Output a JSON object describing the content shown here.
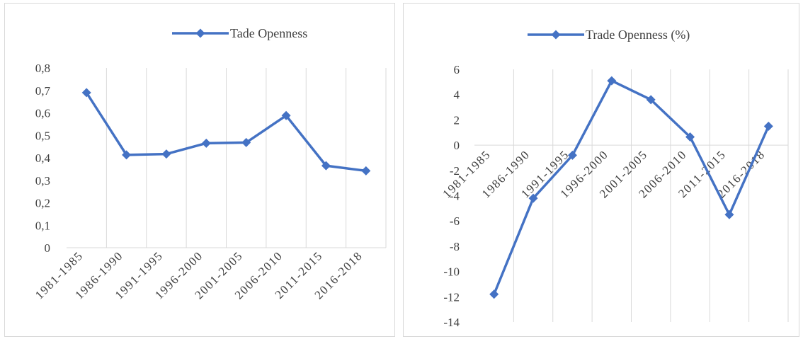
{
  "colors": {
    "series": "#4472c4",
    "grid": "#d9d9d9",
    "text": "#404040"
  },
  "chart_data": [
    {
      "type": "line",
      "categories": [
        "1981-1985",
        "1986-1990",
        "1991-1995",
        "1996-2000",
        "2001-2005",
        "2006-2010",
        "2011-2015",
        "2016-2018"
      ],
      "series": [
        {
          "name": "Tade Openness",
          "values": [
            0.69,
            0.413,
            0.417,
            0.465,
            0.468,
            0.588,
            0.365,
            0.342
          ],
          "marker": "diamond"
        }
      ],
      "ylim": [
        0,
        0.8
      ],
      "yticks": [
        0,
        0.1,
        0.2,
        0.3,
        0.4,
        0.5,
        0.6,
        0.7,
        0.8
      ],
      "ytick_labels": [
        "0",
        "0,1",
        "0,2",
        "0,3",
        "0,4",
        "0,5",
        "0,6",
        "0,7",
        "0,8"
      ],
      "grid": "vertical",
      "legend": "top",
      "xlabel": "",
      "ylabel": ""
    },
    {
      "type": "line",
      "categories": [
        "1981-1985",
        "1986-1990",
        "1991-1995",
        "1996-2000",
        "2001-2005",
        "2006-2010",
        "2011-2015",
        "2016-2018"
      ],
      "series": [
        {
          "name": "Trade Openness (%)",
          "values": [
            -11.8,
            -4.2,
            -0.8,
            5.1,
            3.6,
            0.65,
            -5.5,
            1.5
          ],
          "marker": "diamond"
        }
      ],
      "ylim": [
        -14,
        6
      ],
      "yticks": [
        -14,
        -12,
        -10,
        -8,
        -6,
        -4,
        -2,
        0,
        2,
        4,
        6
      ],
      "ytick_labels": [
        "-14",
        "-12",
        "-10",
        "-8",
        "-6",
        "-4",
        "-2",
        "0",
        "2",
        "4",
        "6"
      ],
      "grid": "vertical",
      "legend": "top",
      "xlabel": "",
      "ylabel": ""
    }
  ]
}
